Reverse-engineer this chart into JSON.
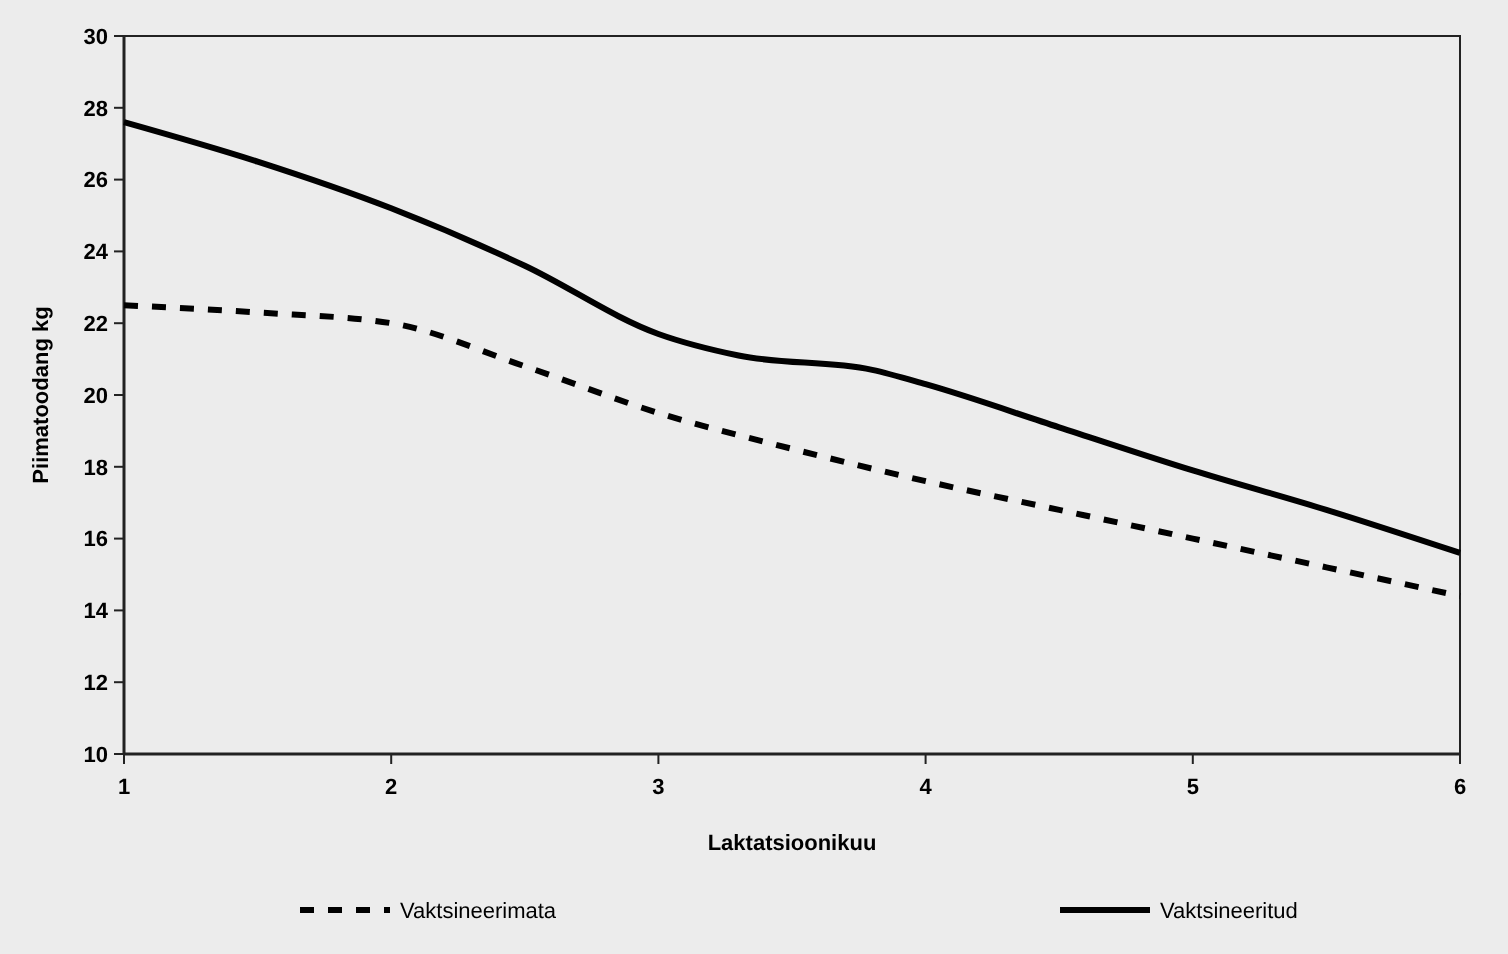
{
  "chart_data": {
    "type": "line",
    "xlabel": "Laktatsioonikuu",
    "ylabel": "Piimatoodang kg",
    "xlim": [
      1,
      6
    ],
    "xticks": [
      1,
      2,
      3,
      4,
      5,
      6
    ],
    "ylim": [
      10,
      30
    ],
    "yticks": [
      10,
      12,
      14,
      16,
      18,
      20,
      22,
      24,
      26,
      28,
      30
    ],
    "grid": false,
    "legend": "bottom",
    "marker": "none",
    "series": [
      {
        "name": "Vaktsineerimata",
        "color": "#000000",
        "line_style": "dashed",
        "x": [
          1,
          1.5,
          2,
          2.5,
          3,
          3.5,
          4,
          4.5,
          5,
          5.5,
          6
        ],
        "values": [
          22.5,
          22.3,
          22.0,
          20.8,
          19.5,
          18.5,
          17.6,
          16.8,
          16.0,
          15.2,
          14.4
        ]
      },
      {
        "name": "Vaktsineeritud",
        "color": "#000000",
        "line_style": "solid",
        "x": [
          1,
          1.5,
          2,
          2.5,
          3,
          3.3,
          3.8,
          4,
          4.5,
          5,
          5.5,
          6
        ],
        "values": [
          27.6,
          26.5,
          25.2,
          23.6,
          21.7,
          21.1,
          20.7,
          20.3,
          19.1,
          17.9,
          16.8,
          15.6
        ]
      }
    ]
  }
}
